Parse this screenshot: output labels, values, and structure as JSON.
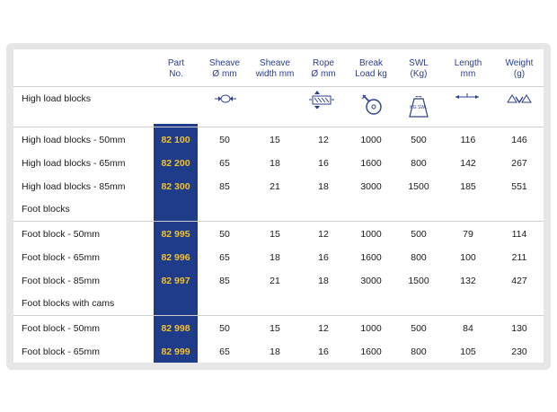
{
  "headers": {
    "part": [
      "Part",
      "No."
    ],
    "sheave": [
      "Sheave",
      "Ø mm"
    ],
    "sheave_width": [
      "Sheave",
      "width mm"
    ],
    "rope": [
      "Rope",
      "Ø mm"
    ],
    "break": [
      "Break",
      "Load kg"
    ],
    "swl": [
      "SWL",
      "(Kg)"
    ],
    "length": [
      "Length",
      "mm"
    ],
    "weight": [
      "Weight",
      "(g)"
    ]
  },
  "icons": {
    "sheave": "sheave-diameter-icon",
    "sheave_width": "sheave-width-icon",
    "rope": "rope-diameter-icon",
    "break": "break-load-icon",
    "swl": "safe-working-load-icon",
    "length": "length-icon",
    "weight": "weight-icon",
    "swl_label": "KG SWL"
  },
  "colors": {
    "part_column": "#1f3c8a",
    "part_text": "#f2c12e",
    "header_text": "#2a3e8c"
  },
  "sections": [
    {
      "title": "High load blocks",
      "rows": [
        {
          "name": "High load blocks - 50mm",
          "part": "82 100",
          "sheave": "50",
          "sheave_width": "15",
          "rope": "12",
          "break": "1000",
          "swl": "500",
          "length": "116",
          "weight": "146"
        },
        {
          "name": "High load blocks - 65mm",
          "part": "82 200",
          "sheave": "65",
          "sheave_width": "18",
          "rope": "16",
          "break": "1600",
          "swl": "800",
          "length": "142",
          "weight": "267"
        },
        {
          "name": "High load blocks - 85mm",
          "part": "82 300",
          "sheave": "85",
          "sheave_width": "21",
          "rope": "18",
          "break": "3000",
          "swl": "1500",
          "length": "185",
          "weight": "551"
        }
      ]
    },
    {
      "title": "Foot blocks",
      "rows": [
        {
          "name": "Foot block - 50mm",
          "part": "82 995",
          "sheave": "50",
          "sheave_width": "15",
          "rope": "12",
          "break": "1000",
          "swl": "500",
          "length": "79",
          "weight": "114"
        },
        {
          "name": "Foot block - 65mm",
          "part": "82 996",
          "sheave": "65",
          "sheave_width": "18",
          "rope": "16",
          "break": "1600",
          "swl": "800",
          "length": "100",
          "weight": "211"
        },
        {
          "name": "Foot block - 85mm",
          "part": "82 997",
          "sheave": "85",
          "sheave_width": "21",
          "rope": "18",
          "break": "3000",
          "swl": "1500",
          "length": "132",
          "weight": "427"
        }
      ]
    },
    {
      "title": "Foot blocks with cams",
      "rows": [
        {
          "name": "Foot block - 50mm",
          "part": "82 998",
          "sheave": "50",
          "sheave_width": "15",
          "rope": "12",
          "break": "1000",
          "swl": "500",
          "length": "84",
          "weight": "130"
        },
        {
          "name": "Foot block - 65mm",
          "part": "82 999",
          "sheave": "65",
          "sheave_width": "18",
          "rope": "16",
          "break": "1600",
          "swl": "800",
          "length": "105",
          "weight": "230"
        }
      ]
    }
  ]
}
